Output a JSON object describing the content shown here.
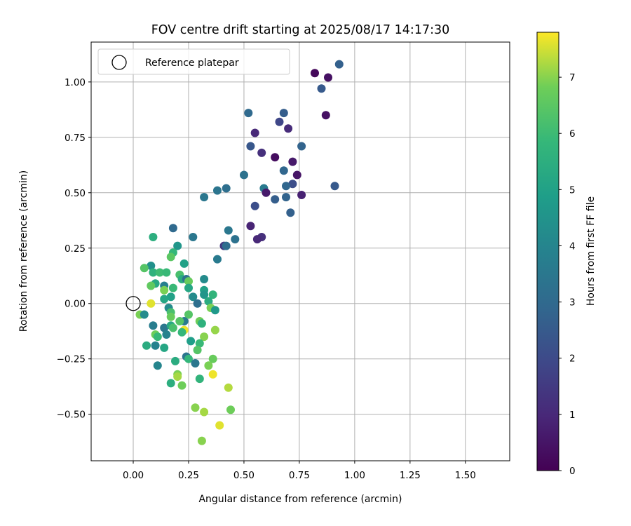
{
  "chart_data": {
    "type": "scatter",
    "title": "FOV centre drift starting at 2025/08/17 14:17:30",
    "xlabel": "Angular distance from reference (arcmin)",
    "ylabel": "Rotation from reference (arcmin)",
    "xlim": [
      -0.19,
      1.7
    ],
    "ylim": [
      -0.71,
      1.18
    ],
    "xticks": [
      "0.00",
      "0.25",
      "0.50",
      "0.75",
      "1.00",
      "1.25",
      "1.50"
    ],
    "yticks": [
      "−0.50",
      "−0.25",
      "0.00",
      "0.25",
      "0.50",
      "0.75",
      "1.00"
    ],
    "grid": true,
    "colormap": "viridis",
    "colorbar": {
      "label": "Hours from first FF file",
      "min": 0,
      "max": 7.8,
      "ticks": [
        "0",
        "1",
        "2",
        "3",
        "4",
        "5",
        "6",
        "7"
      ]
    },
    "legend": {
      "entries": [
        "Reference platepar"
      ],
      "placement": "top-left"
    },
    "reference_point": {
      "x": 0.0,
      "y": 0.0
    },
    "series": [
      {
        "values": [
          {
            "x": 0.82,
            "y": 1.04,
            "c": 0.2
          },
          {
            "x": 0.88,
            "y": 1.02,
            "c": 0.4
          },
          {
            "x": 0.93,
            "y": 1.08,
            "c": 2.7
          },
          {
            "x": 0.85,
            "y": 0.97,
            "c": 2.5
          },
          {
            "x": 0.68,
            "y": 0.86,
            "c": 2.6
          },
          {
            "x": 0.52,
            "y": 0.86,
            "c": 3.0
          },
          {
            "x": 0.87,
            "y": 0.85,
            "c": 0.4
          },
          {
            "x": 0.66,
            "y": 0.82,
            "c": 1.9
          },
          {
            "x": 0.7,
            "y": 0.79,
            "c": 1.1
          },
          {
            "x": 0.55,
            "y": 0.77,
            "c": 1.0
          },
          {
            "x": 0.53,
            "y": 0.71,
            "c": 2.4
          },
          {
            "x": 0.76,
            "y": 0.71,
            "c": 2.8
          },
          {
            "x": 0.58,
            "y": 0.68,
            "c": 1.2
          },
          {
            "x": 0.64,
            "y": 0.66,
            "c": 0.3
          },
          {
            "x": 0.72,
            "y": 0.64,
            "c": 0.6
          },
          {
            "x": 0.5,
            "y": 0.58,
            "c": 3.3
          },
          {
            "x": 0.68,
            "y": 0.6,
            "c": 2.9
          },
          {
            "x": 0.74,
            "y": 0.58,
            "c": 0.5
          },
          {
            "x": 0.91,
            "y": 0.53,
            "c": 2.5
          },
          {
            "x": 0.72,
            "y": 0.54,
            "c": 2.1
          },
          {
            "x": 0.69,
            "y": 0.53,
            "c": 2.9
          },
          {
            "x": 0.42,
            "y": 0.52,
            "c": 3.2
          },
          {
            "x": 0.38,
            "y": 0.51,
            "c": 3.4
          },
          {
            "x": 0.59,
            "y": 0.52,
            "c": 3.6
          },
          {
            "x": 0.6,
            "y": 0.5,
            "c": 0.6
          },
          {
            "x": 0.76,
            "y": 0.49,
            "c": 0.8
          },
          {
            "x": 0.32,
            "y": 0.48,
            "c": 3.5
          },
          {
            "x": 0.64,
            "y": 0.47,
            "c": 2.6
          },
          {
            "x": 0.69,
            "y": 0.48,
            "c": 2.8
          },
          {
            "x": 0.55,
            "y": 0.44,
            "c": 2.1
          },
          {
            "x": 0.71,
            "y": 0.41,
            "c": 2.7
          },
          {
            "x": 0.53,
            "y": 0.35,
            "c": 0.9
          },
          {
            "x": 0.43,
            "y": 0.33,
            "c": 3.5
          },
          {
            "x": 0.18,
            "y": 0.34,
            "c": 3.0
          },
          {
            "x": 0.27,
            "y": 0.3,
            "c": 3.5
          },
          {
            "x": 0.09,
            "y": 0.3,
            "c": 5.5
          },
          {
            "x": 0.58,
            "y": 0.3,
            "c": 1.2
          },
          {
            "x": 0.56,
            "y": 0.29,
            "c": 1.0
          },
          {
            "x": 0.46,
            "y": 0.29,
            "c": 3.3
          },
          {
            "x": 0.41,
            "y": 0.26,
            "c": 1.5
          },
          {
            "x": 0.42,
            "y": 0.26,
            "c": 3.1
          },
          {
            "x": 0.2,
            "y": 0.26,
            "c": 4.6
          },
          {
            "x": 0.18,
            "y": 0.23,
            "c": 5.8
          },
          {
            "x": 0.17,
            "y": 0.21,
            "c": 6.5
          },
          {
            "x": 0.38,
            "y": 0.2,
            "c": 3.6
          },
          {
            "x": 0.23,
            "y": 0.18,
            "c": 5.0
          },
          {
            "x": 0.08,
            "y": 0.17,
            "c": 4.4
          },
          {
            "x": 0.05,
            "y": 0.16,
            "c": 6.4
          },
          {
            "x": 0.09,
            "y": 0.14,
            "c": 5.6
          },
          {
            "x": 0.12,
            "y": 0.14,
            "c": 6.0
          },
          {
            "x": 0.15,
            "y": 0.14,
            "c": 5.9
          },
          {
            "x": 0.21,
            "y": 0.13,
            "c": 6.2
          },
          {
            "x": 0.22,
            "y": 0.11,
            "c": 5.4
          },
          {
            "x": 0.32,
            "y": 0.11,
            "c": 4.2
          },
          {
            "x": 0.24,
            "y": 0.11,
            "c": 3.3
          },
          {
            "x": 0.25,
            "y": 0.1,
            "c": 6.7
          },
          {
            "x": 0.1,
            "y": 0.09,
            "c": 5.3
          },
          {
            "x": 0.08,
            "y": 0.08,
            "c": 6.6
          },
          {
            "x": 0.14,
            "y": 0.08,
            "c": 3.8
          },
          {
            "x": 0.18,
            "y": 0.07,
            "c": 5.9
          },
          {
            "x": 0.32,
            "y": 0.06,
            "c": 5.0
          },
          {
            "x": 0.25,
            "y": 0.07,
            "c": 5.2
          },
          {
            "x": 0.14,
            "y": 0.06,
            "c": 6.9
          },
          {
            "x": 0.36,
            "y": 0.04,
            "c": 5.7
          },
          {
            "x": 0.32,
            "y": 0.04,
            "c": 4.6
          },
          {
            "x": 0.17,
            "y": 0.03,
            "c": 5.0
          },
          {
            "x": 0.27,
            "y": 0.03,
            "c": 4.2
          },
          {
            "x": 0.14,
            "y": 0.02,
            "c": 5.2
          },
          {
            "x": 0.34,
            "y": 0.01,
            "c": 5.4
          },
          {
            "x": 0.29,
            "y": 0.0,
            "c": 3.2
          },
          {
            "x": 0.08,
            "y": 0.0,
            "c": 7.6
          },
          {
            "x": 0.16,
            "y": -0.02,
            "c": 4.2
          },
          {
            "x": 0.35,
            "y": -0.02,
            "c": 6.9
          },
          {
            "x": 0.37,
            "y": -0.03,
            "c": 4.7
          },
          {
            "x": 0.17,
            "y": -0.04,
            "c": 6.2
          },
          {
            "x": 0.25,
            "y": -0.05,
            "c": 6.4
          },
          {
            "x": 0.03,
            "y": -0.05,
            "c": 6.9
          },
          {
            "x": 0.05,
            "y": -0.05,
            "c": 4.2
          },
          {
            "x": 0.17,
            "y": -0.06,
            "c": 6.7
          },
          {
            "x": 0.23,
            "y": -0.08,
            "c": 3.6
          },
          {
            "x": 0.21,
            "y": -0.08,
            "c": 6.4
          },
          {
            "x": 0.3,
            "y": -0.08,
            "c": 6.8
          },
          {
            "x": 0.31,
            "y": -0.09,
            "c": 5.6
          },
          {
            "x": 0.09,
            "y": -0.1,
            "c": 3.7
          },
          {
            "x": 0.14,
            "y": -0.11,
            "c": 3.5
          },
          {
            "x": 0.17,
            "y": -0.1,
            "c": 5.3
          },
          {
            "x": 0.18,
            "y": -0.11,
            "c": 6.2
          },
          {
            "x": 0.23,
            "y": -0.12,
            "c": 7.7
          },
          {
            "x": 0.22,
            "y": -0.13,
            "c": 5.8
          },
          {
            "x": 0.37,
            "y": -0.12,
            "c": 7.1
          },
          {
            "x": 0.15,
            "y": -0.14,
            "c": 3.9
          },
          {
            "x": 0.1,
            "y": -0.14,
            "c": 6.8
          },
          {
            "x": 0.11,
            "y": -0.15,
            "c": 5.9
          },
          {
            "x": 0.32,
            "y": -0.15,
            "c": 7.0
          },
          {
            "x": 0.26,
            "y": -0.17,
            "c": 4.9
          },
          {
            "x": 0.3,
            "y": -0.18,
            "c": 5.9
          },
          {
            "x": 0.06,
            "y": -0.19,
            "c": 5.4
          },
          {
            "x": 0.1,
            "y": -0.19,
            "c": 3.9
          },
          {
            "x": 0.14,
            "y": -0.2,
            "c": 5.2
          },
          {
            "x": 0.29,
            "y": -0.21,
            "c": 6.4
          },
          {
            "x": 0.24,
            "y": -0.24,
            "c": 3.4
          },
          {
            "x": 0.25,
            "y": -0.25,
            "c": 5.8
          },
          {
            "x": 0.36,
            "y": -0.25,
            "c": 6.7
          },
          {
            "x": 0.19,
            "y": -0.26,
            "c": 5.4
          },
          {
            "x": 0.28,
            "y": -0.27,
            "c": 3.5
          },
          {
            "x": 0.34,
            "y": -0.28,
            "c": 6.9
          },
          {
            "x": 0.11,
            "y": -0.28,
            "c": 4.0
          },
          {
            "x": 0.36,
            "y": -0.32,
            "c": 7.7
          },
          {
            "x": 0.2,
            "y": -0.32,
            "c": 6.9
          },
          {
            "x": 0.2,
            "y": -0.33,
            "c": 7.2
          },
          {
            "x": 0.3,
            "y": -0.34,
            "c": 5.7
          },
          {
            "x": 0.17,
            "y": -0.36,
            "c": 5.5
          },
          {
            "x": 0.22,
            "y": -0.37,
            "c": 6.8
          },
          {
            "x": 0.43,
            "y": -0.38,
            "c": 7.3
          },
          {
            "x": 0.28,
            "y": -0.47,
            "c": 7.0
          },
          {
            "x": 0.32,
            "y": -0.49,
            "c": 7.2
          },
          {
            "x": 0.44,
            "y": -0.48,
            "c": 6.8
          },
          {
            "x": 0.39,
            "y": -0.55,
            "c": 7.6
          },
          {
            "x": 0.31,
            "y": -0.62,
            "c": 7.0
          }
        ]
      }
    ]
  }
}
